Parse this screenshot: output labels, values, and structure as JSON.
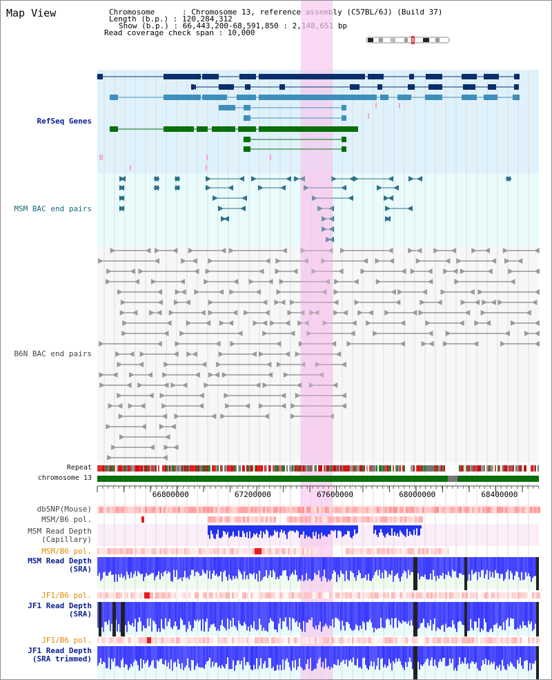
{
  "view": {
    "title": "Map View",
    "info": {
      "chromosome_line": "Chromosome      : Chromosome 13, reference assembly (C57BL/6J) (Build 37)",
      "length_line": "Length (b.p.) : 120,284,312",
      "show_line": "Show (b.p.) : 66,443,200-68,591,850 : 2,148,651 bp",
      "span_line": "Read coverage check span : 10,000"
    }
  },
  "tracks": {
    "refseq": "RefSeq Genes",
    "msm_bac": "MSM BAC end pairs",
    "b6n_bac": "B6N BAC end pairs",
    "repeat": "Repeat",
    "chromosome": "chromosome 13",
    "dbsnp": "dbSNP(Mouse)",
    "msm_b6_pol_1": "MSM/B6 pol.",
    "msm_depth_cap": "MSM Read Depth\n(Capillary)",
    "msm_b6_pol_2": "MSM/B6 pol.",
    "msm_depth_sra": "MSM Read Depth\n(SRA)",
    "jf1_b6_pol_1": "JF1/B6 pol.",
    "jf1_depth_sra": "JF1 Read Depth\n(SRA)",
    "jf1_b6_pol_2": "JF1/B6 pol.",
    "jf1_depth_trim": "JF1 Read Depth\n(SRA trimmed)"
  },
  "axis": {
    "ticks": [
      "66800000",
      "67200000",
      "67600000",
      "68000000",
      "68400000"
    ],
    "range": [
      66443200,
      68591850
    ]
  },
  "highlight_range": [
    67434000,
    67589000
  ],
  "colors": {
    "refseq_bg": "#dff2fb",
    "msm_bac_bg": "#e9fbfb",
    "highlight": "#f6c9ee",
    "chromosome_bar": "#0a6e0a",
    "gap": "#777777",
    "gene_navy": "#0b2f6b",
    "gene_blue": "#3f8fba",
    "gene_green": "#0a6e0a",
    "gene_pink": "#f4a2cf",
    "bac_teal": "#2f6f88",
    "bac_gray": "#666666",
    "depth_blue": "#2233ee",
    "pol_red": "#e81c1c"
  },
  "icons": {
    "ideogram": "chromosome-ideogram-icon"
  }
}
